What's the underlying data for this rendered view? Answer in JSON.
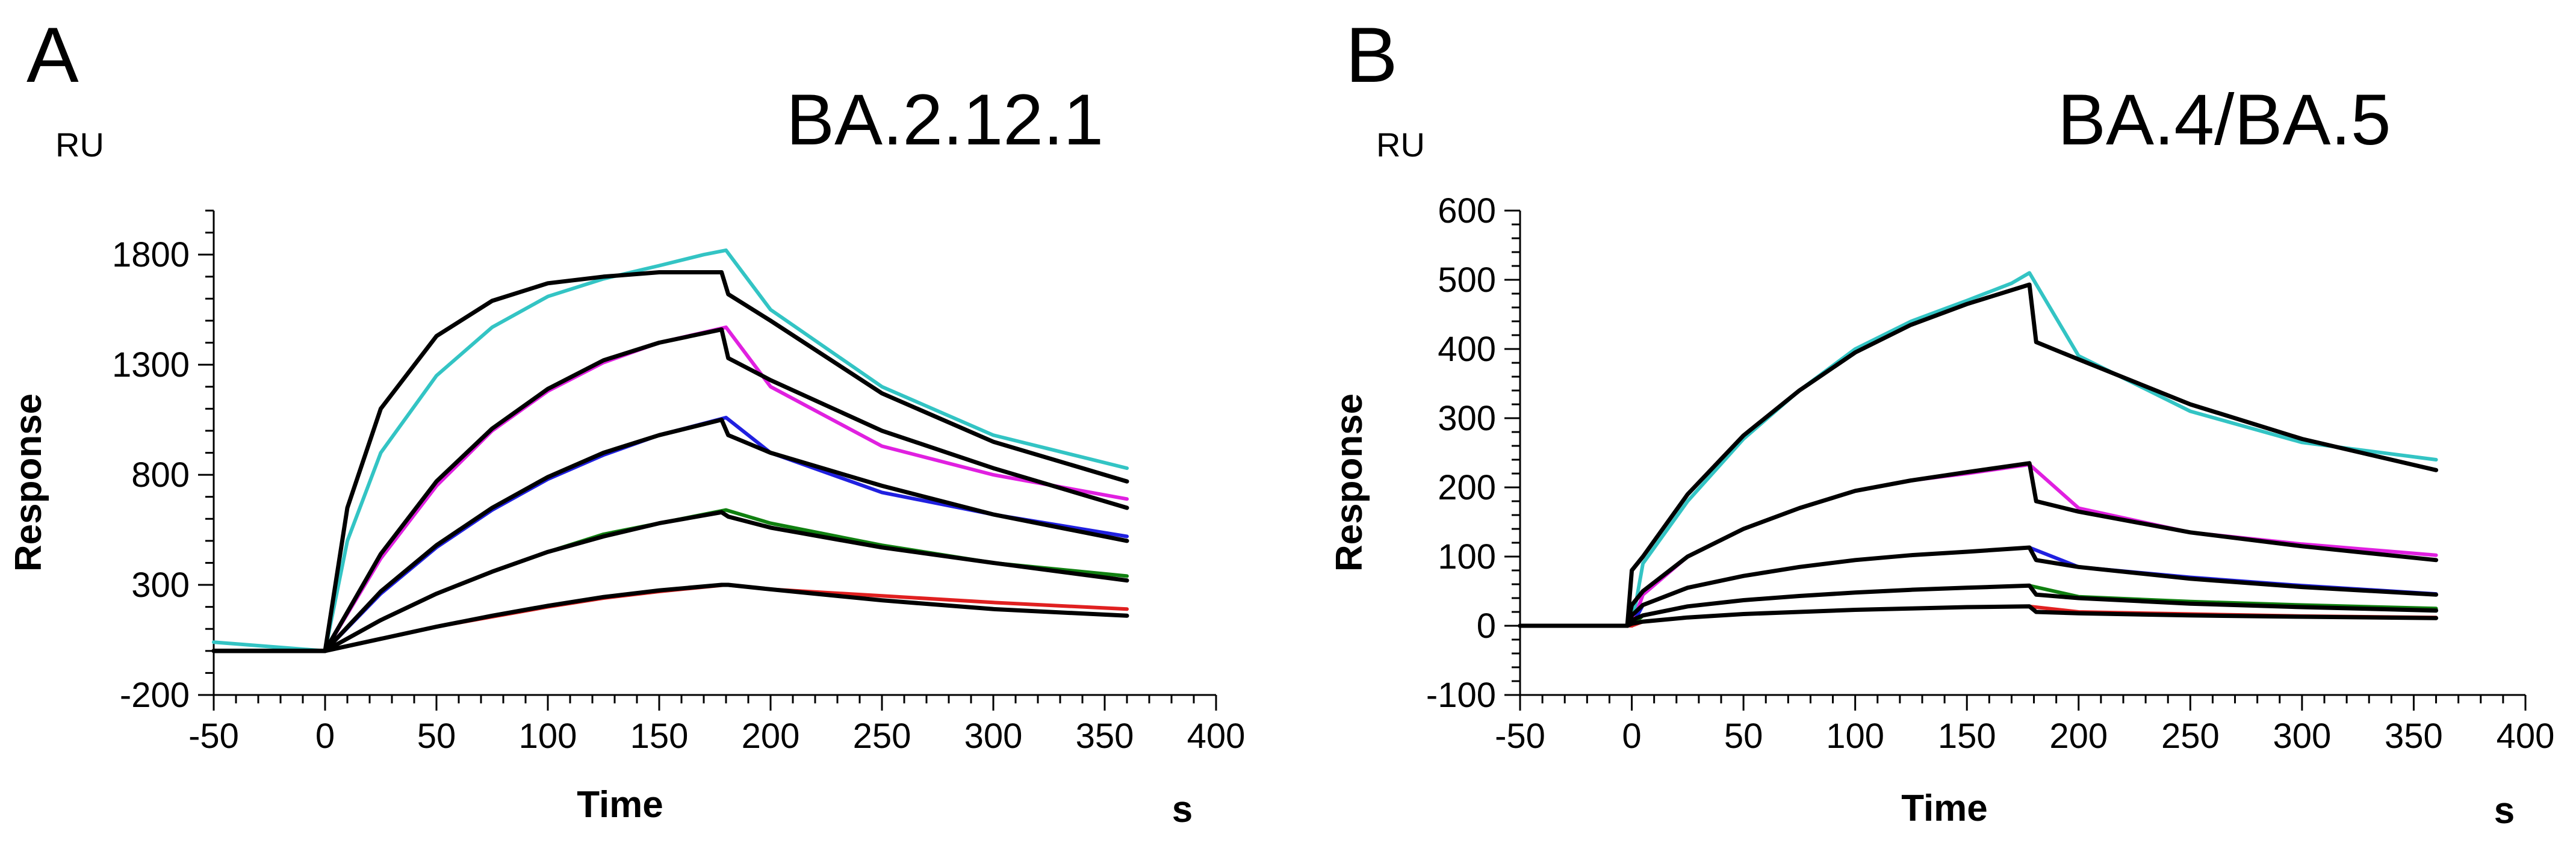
{
  "chart_data": [
    {
      "type": "line",
      "panel_label": "A",
      "title": "BA.2.12.1",
      "xlabel": "Time",
      "xunit": "s",
      "ylabel": "Response",
      "yunit": "RU",
      "xlim": [
        -50,
        400
      ],
      "ylim": [
        -200,
        2000
      ],
      "xticks": [
        -50,
        0,
        50,
        100,
        150,
        200,
        250,
        300,
        350,
        400
      ],
      "yticks": [
        -200,
        300,
        800,
        1300,
        1800
      ],
      "grid": false,
      "legend": "none",
      "series": [
        {
          "color": "#33c4c4",
          "x": [
            -50,
            0,
            10,
            25,
            50,
            75,
            100,
            125,
            150,
            170,
            180,
            200,
            250,
            300,
            360
          ],
          "y": [
            40,
            0,
            500,
            900,
            1250,
            1470,
            1610,
            1690,
            1750,
            1800,
            1820,
            1550,
            1200,
            980,
            830
          ]
        },
        {
          "color": "#e020e0",
          "x": [
            -50,
            0,
            25,
            50,
            75,
            100,
            125,
            150,
            180,
            200,
            250,
            300,
            360
          ],
          "y": [
            0,
            0,
            420,
            750,
            1000,
            1180,
            1310,
            1400,
            1470,
            1200,
            930,
            800,
            690
          ]
        },
        {
          "color": "#2020e0",
          "x": [
            -50,
            0,
            25,
            50,
            75,
            100,
            125,
            150,
            180,
            200,
            250,
            300,
            360
          ],
          "y": [
            0,
            0,
            260,
            470,
            640,
            780,
            890,
            980,
            1060,
            900,
            720,
            620,
            520
          ]
        },
        {
          "color": "#108010",
          "x": [
            -50,
            0,
            25,
            50,
            75,
            100,
            125,
            150,
            180,
            200,
            250,
            300,
            360
          ],
          "y": [
            0,
            0,
            140,
            260,
            360,
            450,
            530,
            580,
            640,
            580,
            480,
            400,
            340
          ]
        },
        {
          "color": "#e02020",
          "x": [
            -50,
            0,
            25,
            50,
            75,
            100,
            125,
            150,
            180,
            200,
            250,
            300,
            360
          ],
          "y": [
            0,
            0,
            55,
            110,
            155,
            200,
            240,
            270,
            300,
            280,
            250,
            220,
            190
          ]
        },
        {
          "color": "#000000",
          "x": [
            -50,
            0,
            10,
            25,
            50,
            75,
            100,
            125,
            150,
            178,
            181,
            200,
            250,
            300,
            360
          ],
          "y": [
            0,
            0,
            650,
            1100,
            1430,
            1590,
            1670,
            1700,
            1720,
            1720,
            1620,
            1500,
            1170,
            950,
            770
          ]
        },
        {
          "color": "#000000",
          "x": [
            -50,
            0,
            25,
            50,
            75,
            100,
            125,
            150,
            178,
            181,
            200,
            250,
            300,
            360
          ],
          "y": [
            0,
            0,
            440,
            770,
            1010,
            1190,
            1320,
            1400,
            1460,
            1330,
            1230,
            1000,
            830,
            650
          ]
        },
        {
          "color": "#000000",
          "x": [
            -50,
            0,
            25,
            50,
            75,
            100,
            125,
            150,
            178,
            181,
            200,
            250,
            300,
            360
          ],
          "y": [
            0,
            0,
            270,
            480,
            650,
            790,
            900,
            980,
            1050,
            980,
            900,
            750,
            620,
            500
          ]
        },
        {
          "color": "#000000",
          "x": [
            -50,
            0,
            25,
            50,
            75,
            100,
            125,
            150,
            178,
            181,
            200,
            250,
            300,
            360
          ],
          "y": [
            0,
            0,
            140,
            260,
            360,
            450,
            520,
            580,
            630,
            610,
            560,
            470,
            400,
            320
          ]
        },
        {
          "color": "#000000",
          "x": [
            -50,
            0,
            25,
            50,
            75,
            100,
            125,
            150,
            178,
            181,
            200,
            250,
            300,
            360
          ],
          "y": [
            0,
            0,
            55,
            110,
            160,
            205,
            245,
            275,
            300,
            300,
            280,
            230,
            190,
            160
          ]
        }
      ]
    },
    {
      "type": "line",
      "panel_label": "B",
      "title": "BA.4/BA.5",
      "xlabel": "Time",
      "xunit": "s",
      "ylabel": "Response",
      "yunit": "RU",
      "xlim": [
        -50,
        400
      ],
      "ylim": [
        -100,
        600
      ],
      "xticks": [
        -50,
        0,
        50,
        100,
        150,
        200,
        250,
        300,
        350,
        400
      ],
      "yticks": [
        -100,
        0,
        100,
        200,
        300,
        400,
        500,
        600
      ],
      "grid": false,
      "legend": "none",
      "series": [
        {
          "color": "#33c4c4",
          "x": [
            -50,
            0,
            5,
            25,
            50,
            75,
            100,
            125,
            150,
            170,
            178,
            200,
            250,
            300,
            360
          ],
          "y": [
            0,
            0,
            90,
            180,
            270,
            340,
            400,
            440,
            470,
            495,
            510,
            390,
            310,
            265,
            240
          ]
        },
        {
          "color": "#e020e0",
          "x": [
            -50,
            0,
            5,
            25,
            50,
            75,
            100,
            125,
            150,
            178,
            200,
            250,
            300,
            360
          ],
          "y": [
            0,
            0,
            45,
            100,
            140,
            170,
            195,
            210,
            220,
            233,
            170,
            135,
            118,
            102
          ]
        },
        {
          "color": "#2020e0",
          "x": [
            -50,
            0,
            5,
            25,
            50,
            75,
            100,
            125,
            150,
            178,
            200,
            250,
            300,
            360
          ],
          "y": [
            0,
            0,
            30,
            55,
            72,
            85,
            95,
            102,
            107,
            113,
            85,
            70,
            58,
            46
          ]
        },
        {
          "color": "#108010",
          "x": [
            -50,
            0,
            5,
            25,
            50,
            75,
            100,
            125,
            150,
            178,
            200,
            250,
            300,
            360
          ],
          "y": [
            0,
            0,
            15,
            28,
            37,
            43,
            48,
            52,
            55,
            58,
            42,
            35,
            30,
            25
          ]
        },
        {
          "color": "#e02020",
          "x": [
            -50,
            0,
            5,
            25,
            50,
            75,
            100,
            125,
            150,
            178,
            200,
            250,
            300,
            360
          ],
          "y": [
            0,
            0,
            6,
            12,
            17,
            20,
            23,
            25,
            27,
            28,
            20,
            17,
            14,
            12
          ]
        },
        {
          "color": "#000000",
          "x": [
            -50,
            -2,
            0,
            5,
            25,
            50,
            75,
            100,
            125,
            150,
            178,
            181,
            200,
            250,
            300,
            360
          ],
          "y": [
            0,
            0,
            80,
            100,
            190,
            275,
            340,
            395,
            435,
            465,
            493,
            410,
            385,
            320,
            270,
            225
          ]
        },
        {
          "color": "#000000",
          "x": [
            -50,
            -2,
            0,
            5,
            25,
            50,
            75,
            100,
            125,
            150,
            178,
            181,
            200,
            250,
            300,
            360
          ],
          "y": [
            0,
            0,
            30,
            50,
            100,
            140,
            170,
            195,
            210,
            222,
            235,
            180,
            165,
            135,
            115,
            95
          ]
        },
        {
          "color": "#000000",
          "x": [
            -50,
            -2,
            0,
            5,
            25,
            50,
            75,
            100,
            125,
            150,
            178,
            181,
            200,
            250,
            300,
            360
          ],
          "y": [
            0,
            0,
            15,
            30,
            55,
            72,
            85,
            95,
            102,
            107,
            113,
            95,
            85,
            68,
            56,
            45
          ]
        },
        {
          "color": "#000000",
          "x": [
            -50,
            -2,
            0,
            5,
            25,
            50,
            75,
            100,
            125,
            150,
            178,
            181,
            200,
            250,
            300,
            360
          ],
          "y": [
            0,
            0,
            8,
            15,
            28,
            37,
            43,
            48,
            52,
            55,
            58,
            45,
            40,
            32,
            27,
            22
          ]
        },
        {
          "color": "#000000",
          "x": [
            -50,
            -2,
            0,
            5,
            25,
            50,
            75,
            100,
            125,
            150,
            178,
            181,
            200,
            250,
            300,
            360
          ],
          "y": [
            0,
            0,
            3,
            6,
            12,
            17,
            20,
            23,
            25,
            27,
            28,
            20,
            18,
            15,
            13,
            11
          ]
        }
      ]
    }
  ]
}
